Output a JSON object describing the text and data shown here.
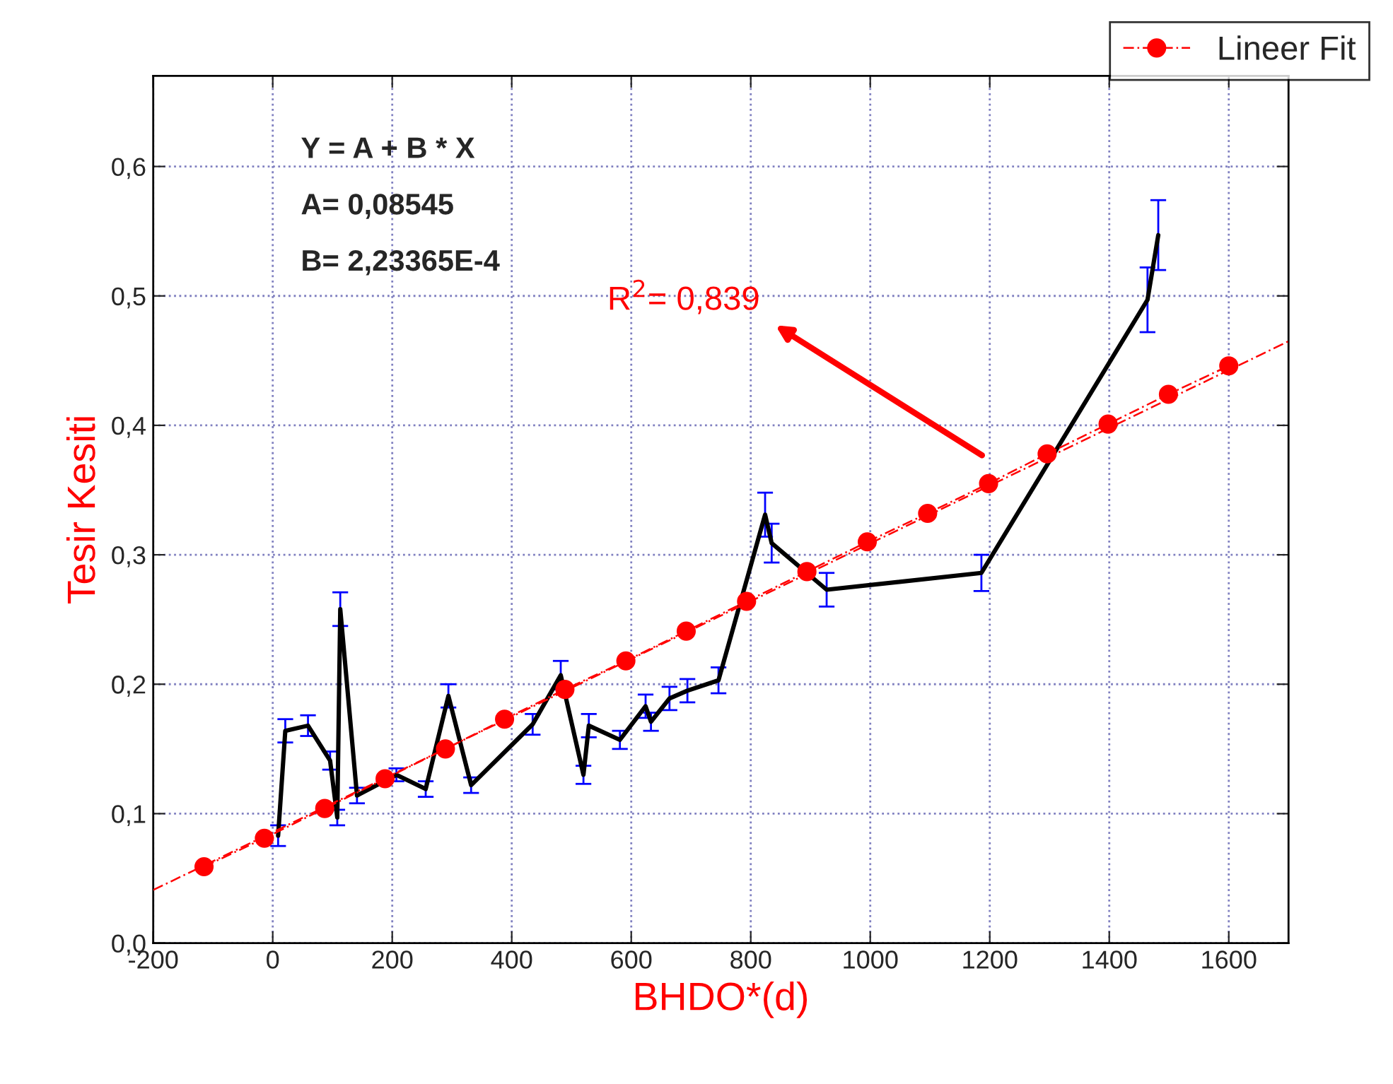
{
  "chart_data": {
    "type": "line",
    "xlabel": "BHDO*(d)",
    "ylabel": "Tesir Kesiti",
    "xlim": [
      -200,
      1700
    ],
    "xticks": [
      -200,
      0,
      200,
      400,
      600,
      800,
      1000,
      1200,
      1400,
      1600
    ],
    "ylim": [
      0,
      0.67
    ],
    "yticks": [
      {
        "value": 0.0,
        "label": "0,0"
      },
      {
        "value": 0.1,
        "label": "0,1"
      },
      {
        "value": 0.2,
        "label": "0,2"
      },
      {
        "value": 0.3,
        "label": "0,3"
      },
      {
        "value": 0.4,
        "label": "0,4"
      },
      {
        "value": 0.5,
        "label": "0,5"
      },
      {
        "value": 0.6,
        "label": "0,6"
      }
    ],
    "grid": true,
    "legend": "top right",
    "series": [
      {
        "color": "#000000",
        "marker": "none",
        "line_style": "solid",
        "x": [
          9,
          21,
          59,
          96,
          108,
          113,
          141,
          207,
          256,
          294,
          332,
          435,
          482,
          520,
          529,
          581,
          624,
          633,
          664,
          694,
          746,
          824,
          835,
          927,
          1186,
          1464,
          1482
        ],
        "values": [
          0.083,
          0.164,
          0.168,
          0.141,
          0.097,
          0.258,
          0.114,
          0.13,
          0.119,
          0.191,
          0.122,
          0.169,
          0.207,
          0.13,
          0.168,
          0.157,
          0.183,
          0.171,
          0.189,
          0.195,
          0.203,
          0.331,
          0.309,
          0.273,
          0.286,
          0.497,
          0.547
        ],
        "errors": [
          0.008,
          0.009,
          0.008,
          0.007,
          0.006,
          0.013,
          0.006,
          0.005,
          0.006,
          0.009,
          0.006,
          0.008,
          0.011,
          0.007,
          0.009,
          0.007,
          0.009,
          0.007,
          0.009,
          0.009,
          0.01,
          0.017,
          0.015,
          0.013,
          0.014,
          0.025,
          0.027
        ]
      },
      {
        "color": "#ff0000",
        "marker": "none",
        "line_style": "dashed",
        "x": [
          -200,
          1700
        ],
        "values": [
          0.041,
          0.465
        ]
      },
      {
        "name": "Lineer Fit",
        "color": "#ff0000",
        "marker": "circle",
        "line_style": "dashed",
        "x": [
          -115,
          -14,
          87,
          188,
          289,
          388,
          489,
          591,
          692,
          793,
          894,
          995,
          1096,
          1198,
          1296,
          1398,
          1499,
          1600
        ],
        "values": [
          0.059,
          0.081,
          0.104,
          0.127,
          0.15,
          0.173,
          0.196,
          0.218,
          0.241,
          0.264,
          0.287,
          0.31,
          0.332,
          0.355,
          0.378,
          0.401,
          0.424,
          0.446
        ]
      }
    ],
    "annotations": [
      "Y = A + B * X",
      "A= 0,08545",
      "B= 2,23365E-4",
      "R$^{2}$= 0,839"
    ]
  }
}
